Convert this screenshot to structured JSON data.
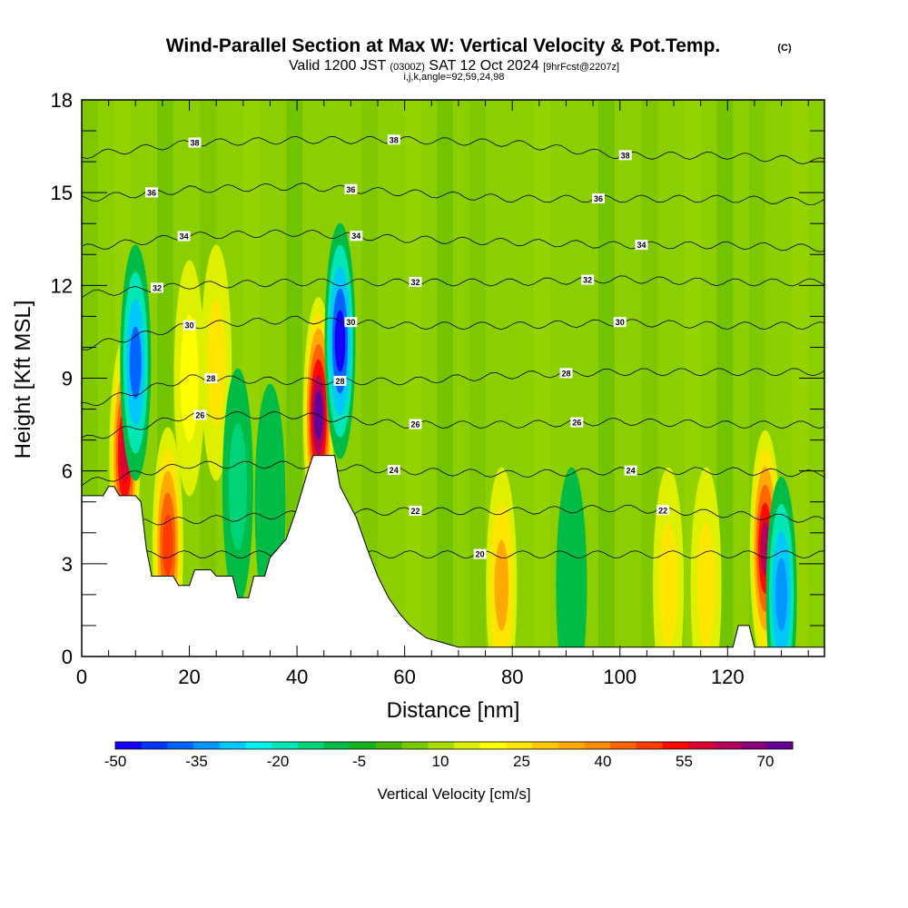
{
  "chart_data": {
    "type": "heatmap",
    "title": "Wind-Parallel Section at Max W: Vertical Velocity & Pot.Temp.",
    "copyright_mark": "(C)",
    "valid_prefix": "Valid 1200 JST",
    "valid_utc": "(0300Z)",
    "valid_date": "SAT 12 Oct 2024",
    "forecast_info": "[9hrFcst@2207z]",
    "section_params": "i,j,k,angle=92,59,24,98",
    "xlabel": "Distance [nm]",
    "ylabel": "Height [Kft MSL]",
    "xlim": [
      0,
      138
    ],
    "ylim": [
      0,
      18
    ],
    "x_ticks": [
      "0",
      "20",
      "40",
      "60",
      "80",
      "100",
      "120"
    ],
    "y_ticks": [
      "0",
      "3",
      "6",
      "9",
      "12",
      "15",
      "18"
    ],
    "colorbar": {
      "label": "Vertical Velocity [cm/s]",
      "tick_labels": [
        "-50",
        "-35",
        "-20",
        "-5",
        "10",
        "25",
        "40",
        "55",
        "70"
      ],
      "colors": [
        "#1400ff",
        "#0034ff",
        "#0064ff",
        "#0096ff",
        "#00c8ff",
        "#00f0f0",
        "#00e6b4",
        "#00d278",
        "#00bc46",
        "#14b41e",
        "#46b800",
        "#78c800",
        "#aadc00",
        "#dcf000",
        "#ffff00",
        "#ffe600",
        "#ffc800",
        "#ffaa00",
        "#ff8c00",
        "#ff6400",
        "#ff3c00",
        "#ff0a00",
        "#dc0032",
        "#b4005a",
        "#8c0078",
        "#640096"
      ]
    },
    "theta_contours": [
      {
        "level": "20",
        "y": [
          3.3,
          3.3,
          3.3,
          3.3,
          3.3,
          3.3,
          3.3,
          3.3
        ],
        "labels_at": [
          74
        ]
      },
      {
        "level": "22",
        "y": [
          4.3,
          4.4,
          4.6,
          4.7,
          4.7,
          4.8,
          4.6,
          4.4
        ],
        "labels_at": [
          62,
          108
        ]
      },
      {
        "level": "24",
        "y": [
          5.6,
          6.2,
          6.2,
          6.0,
          5.9,
          6.0,
          6.0,
          5.9
        ],
        "labels_at": [
          58,
          102
        ]
      },
      {
        "level": "26",
        "y": [
          7.0,
          7.8,
          7.8,
          7.5,
          7.5,
          7.6,
          7.5,
          7.5
        ],
        "labels_at": [
          22,
          62,
          92
        ]
      },
      {
        "level": "28",
        "y": [
          8.1,
          9.0,
          8.9,
          8.9,
          9.1,
          9.2,
          9.2,
          9.2
        ],
        "labels_at": [
          24,
          48,
          90
        ]
      },
      {
        "level": "30",
        "y": [
          10.0,
          10.7,
          10.9,
          10.7,
          10.7,
          10.8,
          10.7,
          10.7
        ],
        "labels_at": [
          20,
          50,
          100
        ]
      },
      {
        "level": "32",
        "y": [
          11.7,
          12.0,
          12.1,
          12.1,
          12.1,
          12.2,
          12.1,
          12.1
        ],
        "labels_at": [
          14,
          62,
          94
        ]
      },
      {
        "level": "34",
        "y": [
          13.2,
          13.6,
          13.7,
          13.5,
          13.4,
          13.3,
          13.3,
          13.2
        ],
        "labels_at": [
          19,
          51,
          104
        ]
      },
      {
        "level": "36",
        "y": [
          14.8,
          15.1,
          15.2,
          15.0,
          14.8,
          14.8,
          14.8,
          14.7
        ],
        "labels_at": [
          13,
          50,
          96
        ]
      },
      {
        "level": "38",
        "y": [
          16.2,
          16.6,
          16.7,
          16.7,
          16.6,
          16.2,
          16.2,
          16.0
        ],
        "labels_at": [
          21,
          58,
          101
        ]
      }
    ],
    "contour_x": [
      0,
      20,
      40,
      60,
      80,
      100,
      120,
      138
    ],
    "terrain_kft": [
      [
        0,
        5.2
      ],
      [
        4,
        5.2
      ],
      [
        5,
        5.5
      ],
      [
        6,
        5.5
      ],
      [
        7,
        5.2
      ],
      [
        10,
        5.2
      ],
      [
        11,
        5.0
      ],
      [
        12,
        3.5
      ],
      [
        13,
        2.6
      ],
      [
        17,
        2.6
      ],
      [
        18,
        2.3
      ],
      [
        20,
        2.3
      ],
      [
        21,
        2.8
      ],
      [
        24,
        2.8
      ],
      [
        25,
        2.6
      ],
      [
        28,
        2.6
      ],
      [
        29,
        1.9
      ],
      [
        31,
        1.9
      ],
      [
        32,
        2.6
      ],
      [
        34,
        2.6
      ],
      [
        35,
        3.2
      ],
      [
        38,
        3.8
      ],
      [
        40,
        4.8
      ],
      [
        42,
        6.0
      ],
      [
        43,
        6.5
      ],
      [
        47,
        6.5
      ],
      [
        48,
        5.5
      ],
      [
        51,
        4.5
      ],
      [
        53,
        3.5
      ],
      [
        55,
        2.6
      ],
      [
        57,
        1.9
      ],
      [
        59,
        1.4
      ],
      [
        61,
        1.0
      ],
      [
        64,
        0.6
      ],
      [
        68,
        0.4
      ],
      [
        70,
        0.3
      ],
      [
        121,
        0.3
      ],
      [
        122,
        1.0
      ],
      [
        124,
        1.0
      ],
      [
        125,
        0.3
      ],
      [
        138,
        0.3
      ]
    ],
    "w_features": [
      {
        "x": 8,
        "z": 6.5,
        "w": 55
      },
      {
        "x": 10,
        "z": 9.5,
        "w": -40
      },
      {
        "x": 16,
        "z": 3.6,
        "w": 45
      },
      {
        "x": 20,
        "z": 9.0,
        "w": 15
      },
      {
        "x": 25,
        "z": 9.5,
        "w": 20
      },
      {
        "x": 29,
        "z": 5.5,
        "w": -15
      },
      {
        "x": 35,
        "z": 5.0,
        "w": -12
      },
      {
        "x": 44,
        "z": 7.8,
        "w": 70
      },
      {
        "x": 48,
        "z": 10.2,
        "w": -50
      },
      {
        "x": 78,
        "z": 2.3,
        "w": 30
      },
      {
        "x": 91,
        "z": 2.3,
        "w": -12
      },
      {
        "x": 109,
        "z": 2.3,
        "w": 20
      },
      {
        "x": 116,
        "z": 2.3,
        "w": 20
      },
      {
        "x": 127,
        "z": 3.5,
        "w": 60
      },
      {
        "x": 130,
        "z": 2.0,
        "w": -38
      }
    ]
  }
}
